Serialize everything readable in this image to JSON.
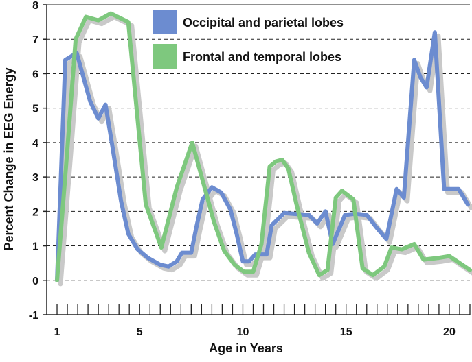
{
  "chart_data": {
    "type": "line",
    "title": "",
    "xlabel": "Age in Years",
    "ylabel": "Percent Change in EEG Energy",
    "xlim": [
      0.5,
      21
    ],
    "ylim": [
      -1,
      8
    ],
    "x_tick_labels": [
      1,
      5,
      10,
      15,
      20
    ],
    "y_tick_labels": [
      -1,
      0,
      1,
      2,
      3,
      4,
      5,
      6,
      7,
      8
    ],
    "minor_x_tick_step": 0.5,
    "grid": "horizontal dashed",
    "legend_position": "top-center",
    "series": [
      {
        "name": "Occipital and parietal lobes",
        "color": "#6c8cd0",
        "smooth": false,
        "points": [
          [
            1.0,
            0.0
          ],
          [
            1.4,
            6.4
          ],
          [
            1.95,
            6.6
          ],
          [
            2.6,
            5.2
          ],
          [
            3.0,
            4.7
          ],
          [
            3.35,
            5.1
          ],
          [
            3.65,
            4.0
          ],
          [
            4.1,
            2.3
          ],
          [
            4.45,
            1.35
          ],
          [
            4.9,
            0.9
          ],
          [
            5.4,
            0.65
          ],
          [
            6.0,
            0.45
          ],
          [
            6.4,
            0.4
          ],
          [
            6.8,
            0.55
          ],
          [
            7.05,
            0.8
          ],
          [
            7.5,
            0.8
          ],
          [
            7.75,
            1.55
          ],
          [
            8.05,
            2.35
          ],
          [
            8.5,
            2.7
          ],
          [
            8.95,
            2.55
          ],
          [
            9.4,
            2.05
          ],
          [
            9.7,
            1.35
          ],
          [
            10.0,
            0.55
          ],
          [
            10.3,
            0.55
          ],
          [
            10.6,
            0.75
          ],
          [
            11.15,
            0.75
          ],
          [
            11.4,
            1.6
          ],
          [
            12.0,
            1.95
          ],
          [
            12.7,
            1.92
          ],
          [
            13.2,
            1.9
          ],
          [
            13.6,
            1.65
          ],
          [
            14.0,
            2.0
          ],
          [
            14.35,
            1.05
          ],
          [
            14.95,
            1.9
          ],
          [
            15.45,
            1.93
          ],
          [
            16.0,
            1.9
          ],
          [
            16.45,
            1.55
          ],
          [
            16.95,
            1.2
          ],
          [
            17.45,
            2.65
          ],
          [
            17.8,
            2.4
          ],
          [
            18.3,
            6.4
          ],
          [
            18.6,
            5.9
          ],
          [
            18.9,
            5.6
          ],
          [
            19.3,
            7.2
          ],
          [
            19.75,
            2.65
          ],
          [
            20.45,
            2.65
          ],
          [
            20.9,
            2.2
          ]
        ]
      },
      {
        "name": "Frontal and temporal lobes",
        "color": "#7ec87e",
        "smooth": false,
        "points": [
          [
            1.0,
            0.0
          ],
          [
            1.5,
            3.8
          ],
          [
            1.9,
            7.0
          ],
          [
            2.4,
            7.65
          ],
          [
            3.0,
            7.55
          ],
          [
            3.6,
            7.75
          ],
          [
            4.45,
            7.5
          ],
          [
            5.3,
            2.2
          ],
          [
            6.05,
            0.95
          ],
          [
            6.8,
            2.7
          ],
          [
            7.55,
            4.0
          ],
          [
            8.05,
            2.9
          ],
          [
            8.6,
            1.7
          ],
          [
            9.1,
            0.85
          ],
          [
            9.6,
            0.45
          ],
          [
            10.05,
            0.25
          ],
          [
            10.5,
            0.25
          ],
          [
            10.9,
            1.05
          ],
          [
            11.3,
            3.3
          ],
          [
            11.6,
            3.45
          ],
          [
            11.9,
            3.5
          ],
          [
            12.2,
            3.25
          ],
          [
            12.6,
            2.2
          ],
          [
            13.2,
            0.8
          ],
          [
            13.7,
            0.15
          ],
          [
            14.1,
            0.3
          ],
          [
            14.5,
            2.4
          ],
          [
            14.8,
            2.6
          ],
          [
            15.35,
            2.35
          ],
          [
            15.8,
            0.35
          ],
          [
            16.3,
            0.15
          ],
          [
            16.85,
            0.4
          ],
          [
            17.2,
            0.95
          ],
          [
            17.7,
            0.9
          ],
          [
            18.3,
            1.05
          ],
          [
            18.75,
            0.6
          ],
          [
            19.5,
            0.65
          ],
          [
            20.0,
            0.7
          ],
          [
            21.0,
            0.3
          ]
        ]
      }
    ]
  }
}
